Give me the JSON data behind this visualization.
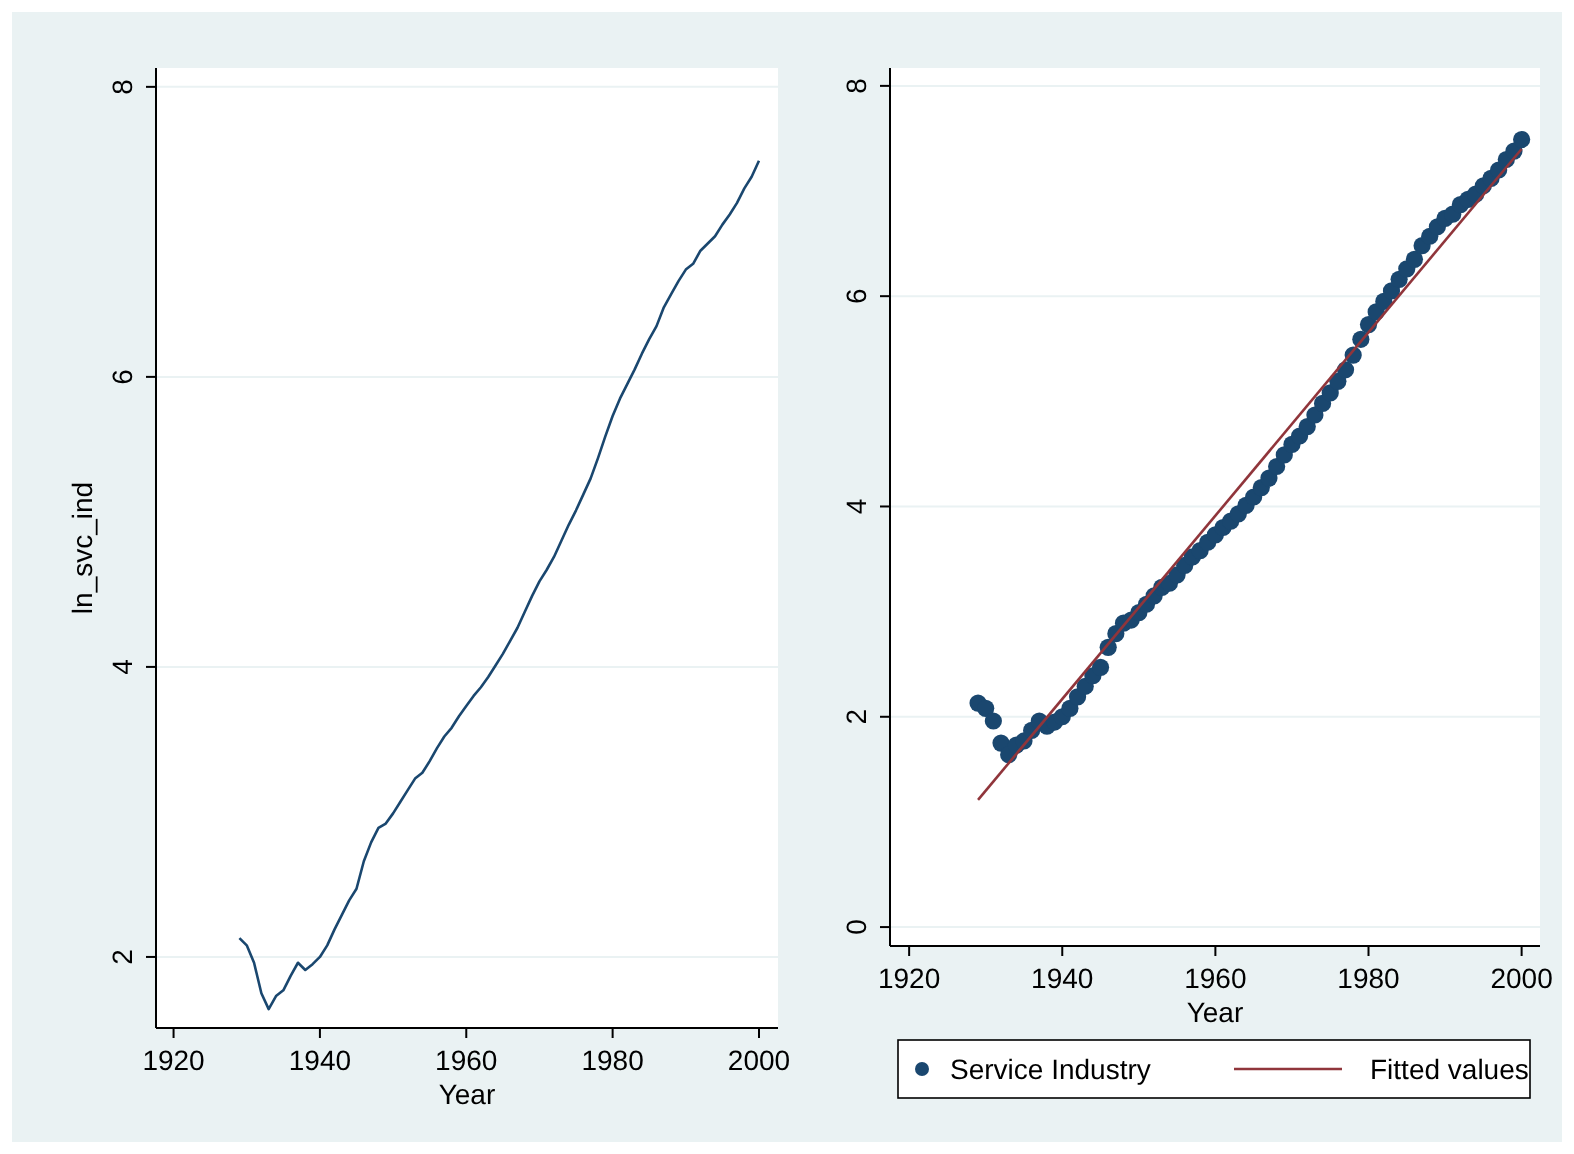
{
  "chart_data": [
    {
      "type": "line",
      "xlabel": "Year",
      "ylabel": "ln_svc_ind",
      "xlim": [
        1917.6,
        2002.6
      ],
      "ylim": [
        1.51,
        8.13
      ],
      "xticks": [
        1920,
        1940,
        1960,
        1980,
        2000
      ],
      "yticks": [
        2,
        4,
        6,
        8
      ],
      "grid": "y",
      "legend": false,
      "x": [
        1929,
        1930,
        1931,
        1932,
        1933,
        1934,
        1935,
        1936,
        1937,
        1938,
        1939,
        1940,
        1941,
        1942,
        1943,
        1944,
        1945,
        1946,
        1947,
        1948,
        1949,
        1950,
        1951,
        1952,
        1953,
        1954,
        1955,
        1956,
        1957,
        1958,
        1959,
        1960,
        1961,
        1962,
        1963,
        1964,
        1965,
        1966,
        1967,
        1968,
        1969,
        1970,
        1971,
        1972,
        1973,
        1974,
        1975,
        1976,
        1977,
        1978,
        1979,
        1980,
        1981,
        1982,
        1983,
        1984,
        1985,
        1986,
        1987,
        1988,
        1989,
        1990,
        1991,
        1992,
        1993,
        1994,
        1995,
        1996,
        1997,
        1998,
        1999,
        2000
      ],
      "series": [
        {
          "color": "#1a476f",
          "values": [
            2.13,
            2.08,
            1.96,
            1.75,
            1.64,
            1.73,
            1.77,
            1.87,
            1.96,
            1.91,
            1.95,
            2.0,
            2.08,
            2.19,
            2.29,
            2.39,
            2.47,
            2.66,
            2.79,
            2.89,
            2.92,
            2.99,
            3.07,
            3.15,
            3.23,
            3.27,
            3.35,
            3.44,
            3.52,
            3.58,
            3.66,
            3.73,
            3.8,
            3.86,
            3.93,
            4.01,
            4.09,
            4.18,
            4.27,
            4.38,
            4.49,
            4.59,
            4.67,
            4.76,
            4.87,
            4.98,
            5.08,
            5.19,
            5.3,
            5.44,
            5.59,
            5.73,
            5.85,
            5.95,
            6.05,
            6.16,
            6.26,
            6.35,
            6.48,
            6.57,
            6.66,
            6.74,
            6.78,
            6.87,
            6.92,
            6.97,
            7.05,
            7.12,
            7.2,
            7.3,
            7.38,
            7.49
          ]
        }
      ]
    },
    {
      "type": "scatter",
      "xlabel": "Year",
      "xlim": [
        1917.5,
        2002.4
      ],
      "ylim": [
        -0.18,
        8.17
      ],
      "xticks": [
        1920,
        1940,
        1960,
        1980,
        2000
      ],
      "yticks": [
        0,
        2,
        4,
        6,
        8
      ],
      "grid": "y",
      "legend": "bottom",
      "x": [
        1929,
        1930,
        1931,
        1932,
        1933,
        1934,
        1935,
        1936,
        1937,
        1938,
        1939,
        1940,
        1941,
        1942,
        1943,
        1944,
        1945,
        1946,
        1947,
        1948,
        1949,
        1950,
        1951,
        1952,
        1953,
        1954,
        1955,
        1956,
        1957,
        1958,
        1959,
        1960,
        1961,
        1962,
        1963,
        1964,
        1965,
        1966,
        1967,
        1968,
        1969,
        1970,
        1971,
        1972,
        1973,
        1974,
        1975,
        1976,
        1977,
        1978,
        1979,
        1980,
        1981,
        1982,
        1983,
        1984,
        1985,
        1986,
        1987,
        1988,
        1989,
        1990,
        1991,
        1992,
        1993,
        1994,
        1995,
        1996,
        1997,
        1998,
        1999,
        2000
      ],
      "series": [
        {
          "name": "Service Industry",
          "marker": "circle",
          "color": "#1a476f",
          "values": [
            2.13,
            2.08,
            1.96,
            1.75,
            1.64,
            1.73,
            1.77,
            1.87,
            1.96,
            1.91,
            1.95,
            2.0,
            2.08,
            2.19,
            2.29,
            2.39,
            2.47,
            2.66,
            2.79,
            2.89,
            2.92,
            2.99,
            3.07,
            3.15,
            3.23,
            3.27,
            3.35,
            3.44,
            3.52,
            3.58,
            3.66,
            3.73,
            3.8,
            3.86,
            3.93,
            4.01,
            4.09,
            4.18,
            4.27,
            4.38,
            4.49,
            4.59,
            4.67,
            4.76,
            4.87,
            4.98,
            5.08,
            5.19,
            5.3,
            5.44,
            5.59,
            5.73,
            5.85,
            5.95,
            6.05,
            6.16,
            6.26,
            6.35,
            6.48,
            6.57,
            6.66,
            6.74,
            6.78,
            6.87,
            6.92,
            6.97,
            7.05,
            7.12,
            7.2,
            7.3,
            7.38,
            7.49
          ]
        },
        {
          "name": "Fitted values",
          "type": "line",
          "marker": "none",
          "color": "#90353b",
          "x": [
            1929,
            2000
          ],
          "values": [
            1.21,
            7.4
          ]
        }
      ]
    }
  ]
}
